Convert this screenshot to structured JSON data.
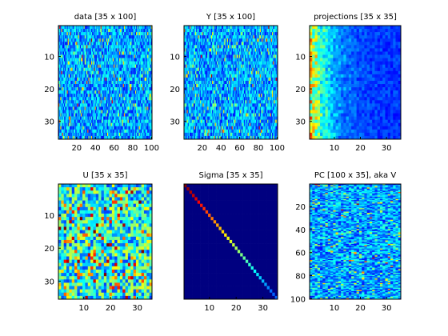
{
  "chart_data": [
    {
      "type": "heatmap",
      "title": "data [35 x 100]",
      "rows": 35,
      "cols": 100,
      "colormap": "jet",
      "pattern": "noise",
      "xticks": [
        20,
        40,
        60,
        80,
        100
      ],
      "yticks": [
        10,
        20,
        30
      ]
    },
    {
      "type": "heatmap",
      "title": "Y [35 x 100]",
      "rows": 35,
      "cols": 100,
      "colormap": "jet",
      "pattern": "noise",
      "xticks": [
        20,
        40,
        60,
        80,
        100
      ],
      "yticks": [
        10,
        20,
        30
      ]
    },
    {
      "type": "heatmap",
      "title": "projections [35 x 35]",
      "rows": 35,
      "cols": 35,
      "colormap": "jet",
      "pattern": "decay",
      "xticks": [
        10,
        20,
        30
      ],
      "yticks": [
        10,
        20,
        30
      ]
    },
    {
      "type": "heatmap",
      "title": "U [35 x 35]",
      "rows": 35,
      "cols": 35,
      "colormap": "jet",
      "pattern": "noise-strong",
      "xticks": [
        10,
        20,
        30
      ],
      "yticks": [
        10,
        20,
        30
      ]
    },
    {
      "type": "heatmap",
      "title": "Sigma [35 x 35]",
      "rows": 35,
      "cols": 35,
      "colormap": "jet",
      "pattern": "diagonal",
      "xticks": [
        10,
        20,
        30
      ],
      "yticks": []
    },
    {
      "type": "heatmap",
      "title": "PC [100 x 35], aka V",
      "rows": 100,
      "cols": 35,
      "colormap": "jet",
      "pattern": "noise",
      "xticks": [
        10,
        20,
        30
      ],
      "yticks": [
        20,
        40,
        60,
        80,
        100
      ]
    }
  ]
}
